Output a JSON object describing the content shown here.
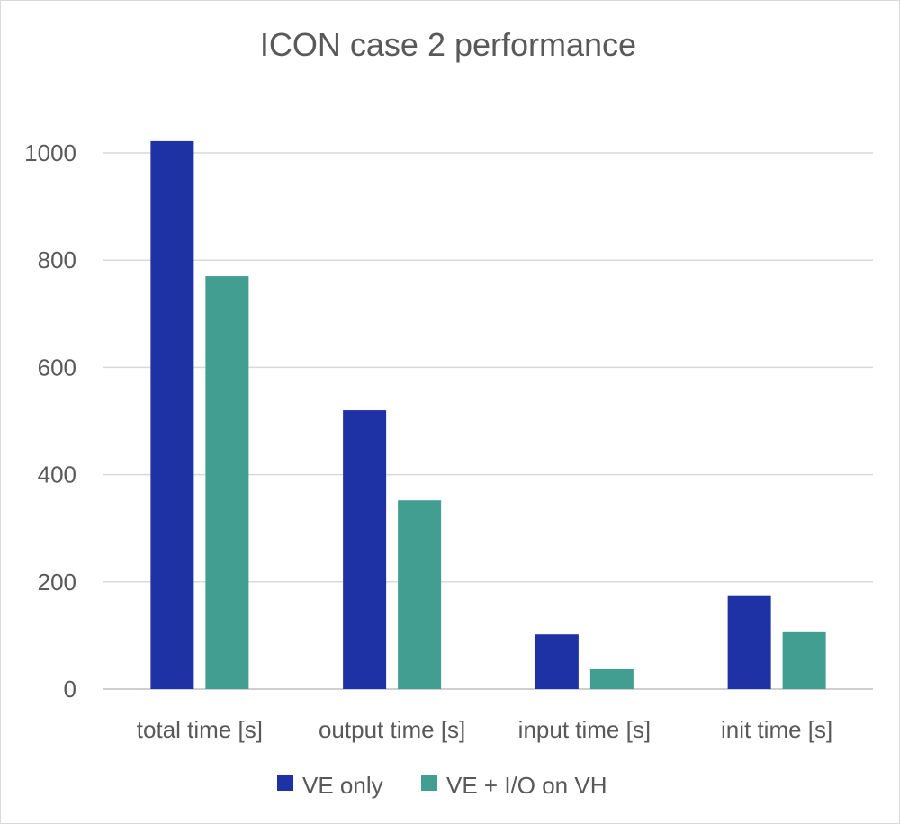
{
  "chart_data": {
    "type": "bar",
    "title": "ICON case 2 performance",
    "xlabel": "",
    "ylabel": "",
    "categories": [
      "total time [s]",
      "output time [s]",
      "input time [s]",
      "init time [s]"
    ],
    "series": [
      {
        "name": "VE only",
        "color": "#1f32a5",
        "values": [
          1022,
          520,
          102,
          175
        ]
      },
      {
        "name": "VE + I/O on VH",
        "color": "#429e90",
        "values": [
          770,
          352,
          37,
          106
        ]
      }
    ],
    "ylim": [
      0,
      1000
    ],
    "yticks": [
      0,
      200,
      400,
      600,
      800,
      1000
    ],
    "grid": true,
    "legend": "bottom"
  }
}
